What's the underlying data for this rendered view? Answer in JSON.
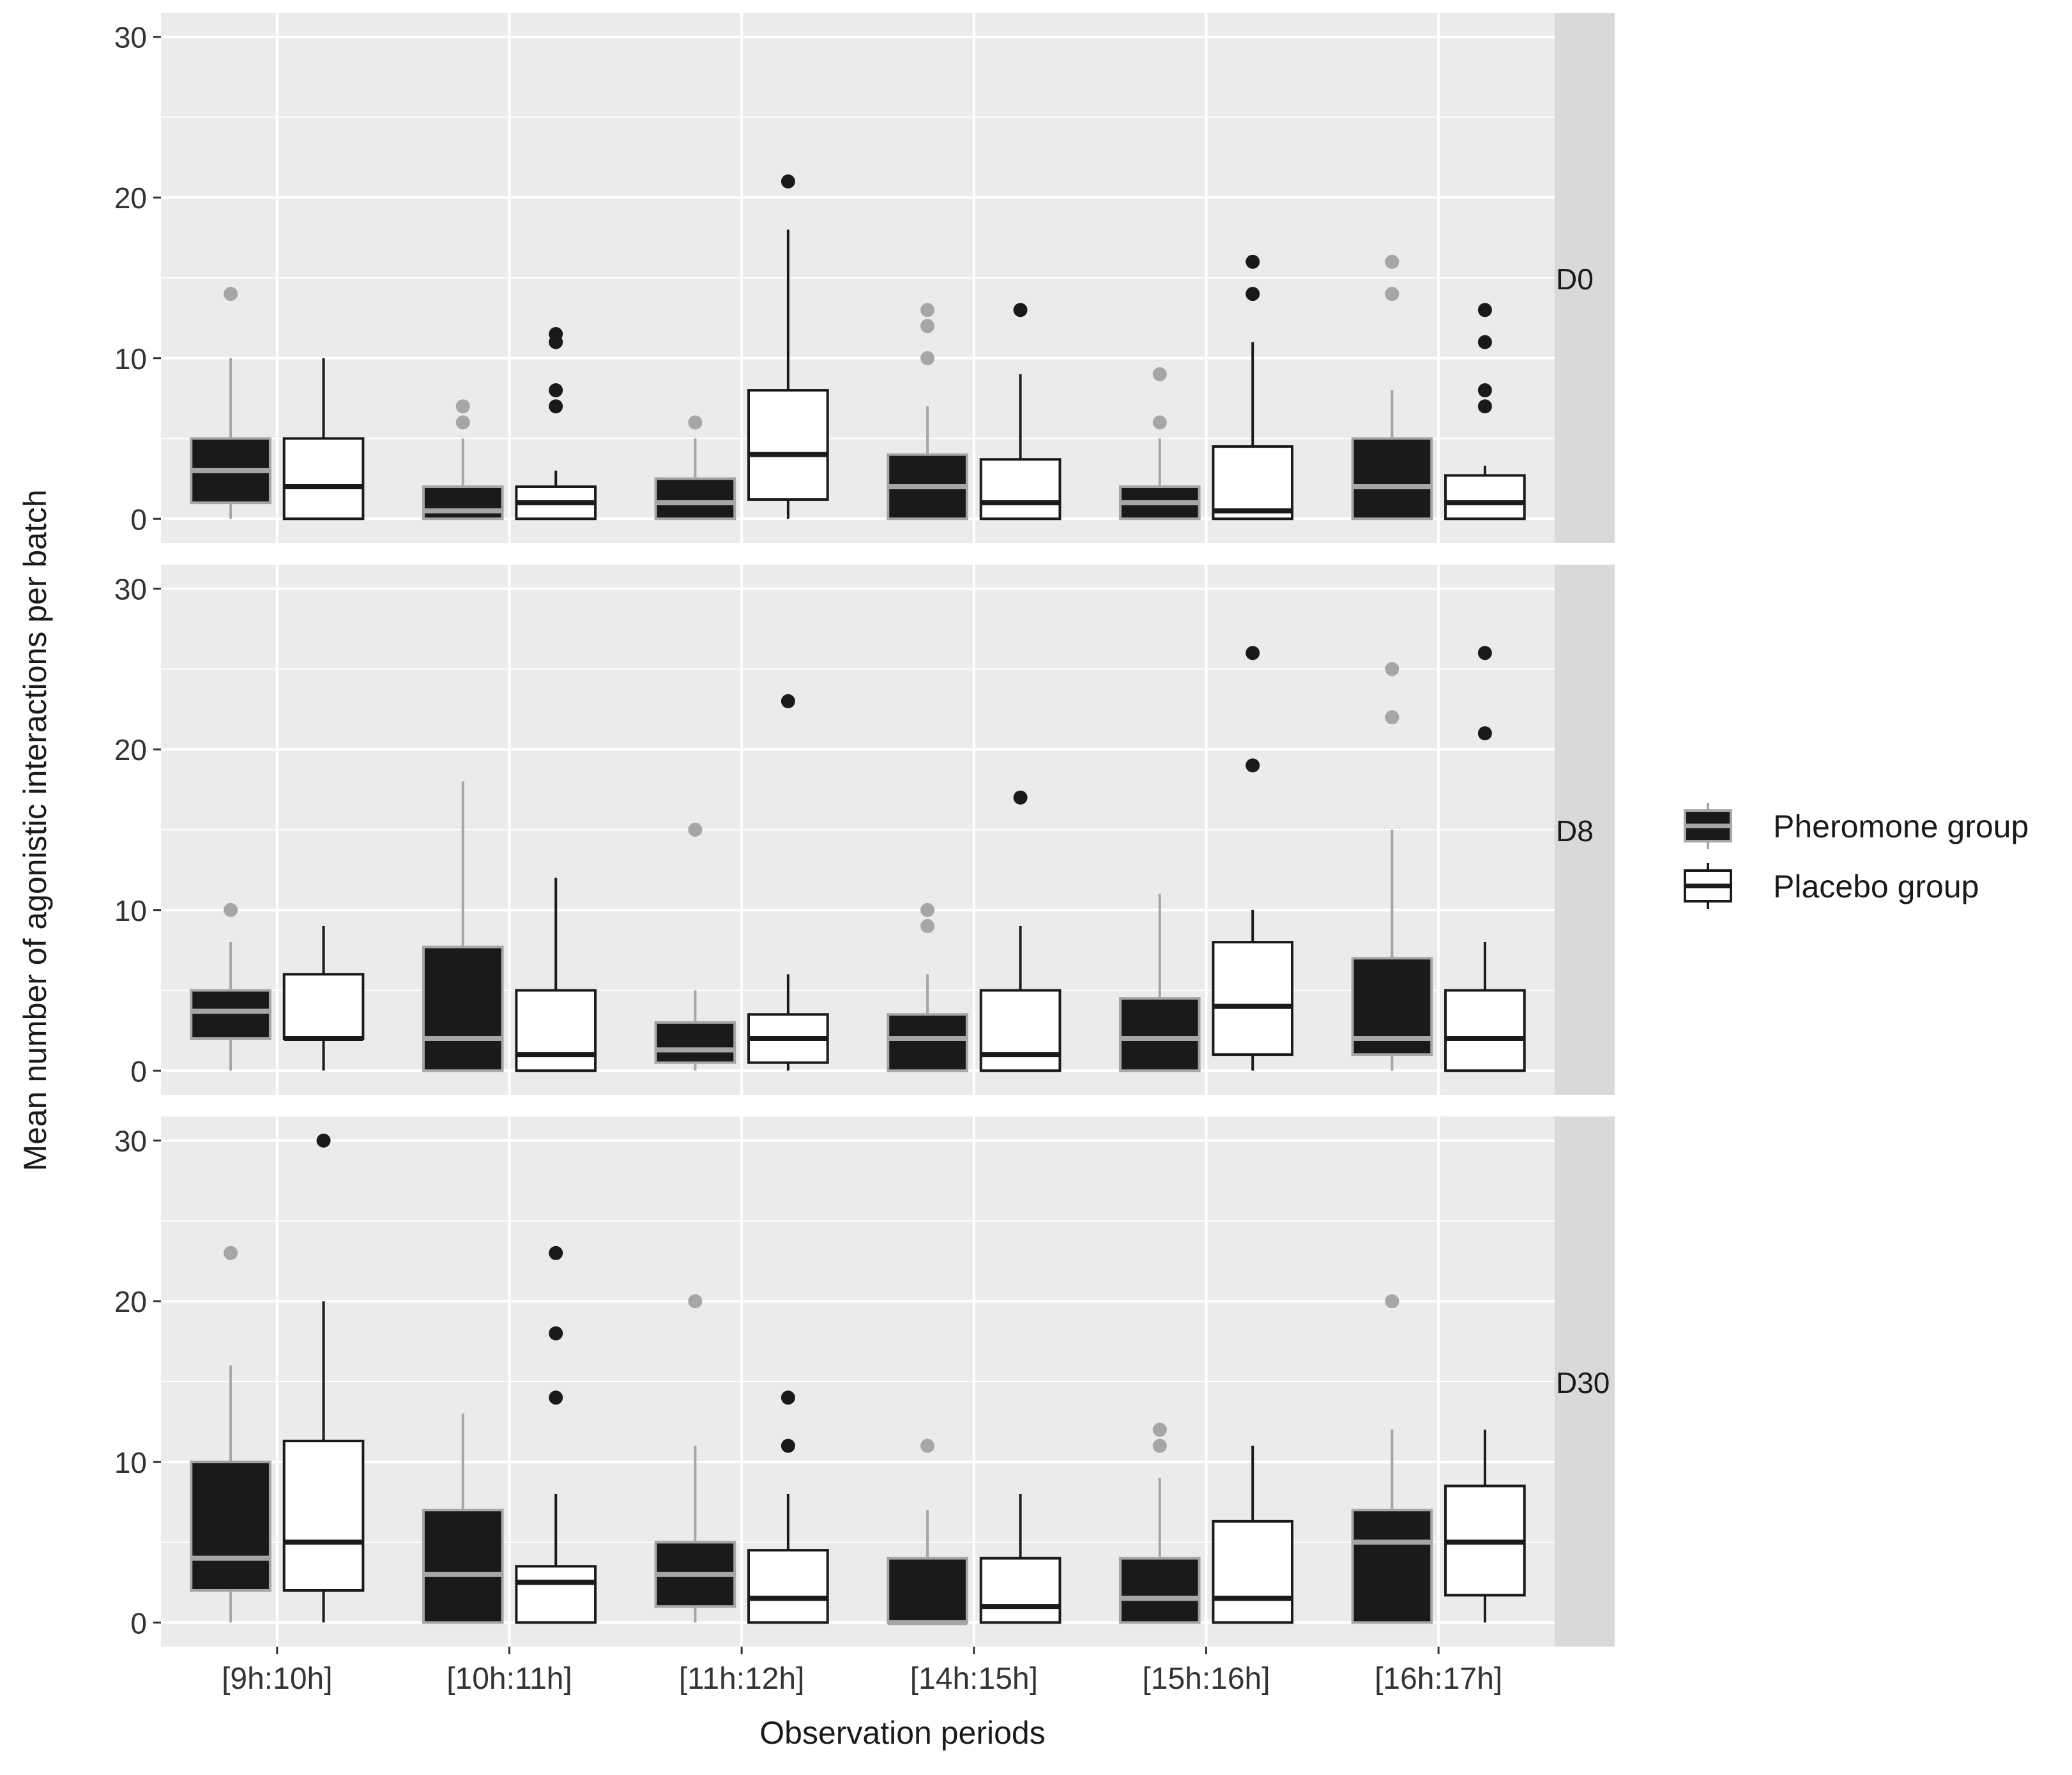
{
  "chart_data": {
    "type": "boxplot",
    "title": "",
    "xlabel": "Observation periods",
    "ylabel": "Mean number  of agonistic interactions per batch",
    "ylim": [
      -1.5,
      31.5
    ],
    "yticks": [
      0,
      10,
      20,
      30
    ],
    "categories": [
      "[9h:10h]",
      "[10h:11h]",
      "[11h:12h]",
      "[14h:15h]",
      "[15h:16h]",
      "[16h:17h]"
    ],
    "legend": {
      "position": "right",
      "entries": [
        {
          "group": "pheromone",
          "label": "Pheromone  group"
        },
        {
          "group": "placebo",
          "label": "Placebo group"
        }
      ]
    },
    "styles": {
      "panel_background": "#ebebeb",
      "strip_background": "#d9d9d9",
      "grid_color": "#ffffff",
      "pheromone_fill": "#1a1a1a",
      "pheromone_line": "#a6a6a6",
      "placebo_fill": "#ffffff",
      "placebo_line": "#1a1a1a"
    },
    "panels": [
      {
        "label": "D0",
        "pheromone": [
          {
            "q1": 1,
            "median": 3,
            "q3": 5,
            "lower": 0,
            "upper": 10,
            "outliers": [
              14
            ]
          },
          {
            "q1": 0,
            "median": 0.5,
            "q3": 2,
            "lower": 0,
            "upper": 5,
            "outliers": [
              6,
              7
            ]
          },
          {
            "q1": 0,
            "median": 1,
            "q3": 2.5,
            "lower": 0,
            "upper": 5,
            "outliers": [
              6
            ]
          },
          {
            "q1": 0,
            "median": 2,
            "q3": 4,
            "lower": 0,
            "upper": 7,
            "outliers": [
              10,
              12,
              13
            ]
          },
          {
            "q1": 0,
            "median": 1,
            "q3": 2,
            "lower": 0,
            "upper": 5,
            "outliers": [
              6,
              9
            ]
          },
          {
            "q1": 0,
            "median": 2,
            "q3": 5,
            "lower": 0,
            "upper": 8,
            "outliers": [
              14,
              16
            ]
          }
        ],
        "placebo": [
          {
            "q1": 0,
            "median": 2,
            "q3": 5,
            "lower": 0,
            "upper": 10,
            "outliers": []
          },
          {
            "q1": 0,
            "median": 1,
            "q3": 2,
            "lower": 0,
            "upper": 3,
            "outliers": [
              7,
              8,
              11,
              11.5
            ]
          },
          {
            "q1": 1.2,
            "median": 4,
            "q3": 8,
            "lower": 0,
            "upper": 18,
            "outliers": [
              21
            ]
          },
          {
            "q1": 0,
            "median": 1,
            "q3": 3.7,
            "lower": 0,
            "upper": 9,
            "outliers": [
              13
            ]
          },
          {
            "q1": 0,
            "median": 0.5,
            "q3": 4.5,
            "lower": 0,
            "upper": 11,
            "outliers": [
              14,
              16
            ]
          },
          {
            "q1": 0,
            "median": 1,
            "q3": 2.7,
            "lower": 0,
            "upper": 3.3,
            "outliers": [
              7,
              8,
              11,
              13
            ]
          }
        ]
      },
      {
        "label": "D8",
        "pheromone": [
          {
            "q1": 2,
            "median": 3.7,
            "q3": 5,
            "lower": 0,
            "upper": 8,
            "outliers": [
              10
            ]
          },
          {
            "q1": 0,
            "median": 2,
            "q3": 7.7,
            "lower": 0,
            "upper": 18,
            "outliers": []
          },
          {
            "q1": 0.5,
            "median": 1.3,
            "q3": 3,
            "lower": 0,
            "upper": 5,
            "outliers": [
              15
            ]
          },
          {
            "q1": 0,
            "median": 2,
            "q3": 3.5,
            "lower": 0,
            "upper": 6,
            "outliers": [
              9,
              10
            ]
          },
          {
            "q1": 0,
            "median": 2,
            "q3": 4.5,
            "lower": 0,
            "upper": 11,
            "outliers": []
          },
          {
            "q1": 1,
            "median": 2,
            "q3": 7,
            "lower": 0,
            "upper": 15,
            "outliers": [
              22,
              25
            ]
          }
        ],
        "placebo": [
          {
            "q1": 2,
            "median": 2,
            "q3": 6,
            "lower": 0,
            "upper": 9,
            "outliers": []
          },
          {
            "q1": 0,
            "median": 1,
            "q3": 5,
            "lower": 0,
            "upper": 12,
            "outliers": []
          },
          {
            "q1": 0.5,
            "median": 2,
            "q3": 3.5,
            "lower": 0,
            "upper": 6,
            "outliers": [
              23
            ]
          },
          {
            "q1": 0,
            "median": 1,
            "q3": 5,
            "lower": 0,
            "upper": 9,
            "outliers": [
              17
            ]
          },
          {
            "q1": 1,
            "median": 4,
            "q3": 8,
            "lower": 0,
            "upper": 10,
            "outliers": [
              19,
              26
            ]
          },
          {
            "q1": 0,
            "median": 2,
            "q3": 5,
            "lower": 0,
            "upper": 8,
            "outliers": [
              21,
              26
            ]
          }
        ]
      },
      {
        "label": "D30",
        "pheromone": [
          {
            "q1": 2,
            "median": 4,
            "q3": 10,
            "lower": 0,
            "upper": 16,
            "outliers": [
              23
            ]
          },
          {
            "q1": 0,
            "median": 3,
            "q3": 7,
            "lower": 0,
            "upper": 13,
            "outliers": []
          },
          {
            "q1": 1,
            "median": 3,
            "q3": 5,
            "lower": 0,
            "upper": 11,
            "outliers": [
              20
            ]
          },
          {
            "q1": 0,
            "median": 0,
            "q3": 4,
            "lower": 0,
            "upper": 7,
            "outliers": [
              11
            ]
          },
          {
            "q1": 0,
            "median": 1.5,
            "q3": 4,
            "lower": 0,
            "upper": 9,
            "outliers": [
              11,
              12
            ]
          },
          {
            "q1": 0,
            "median": 5,
            "q3": 7,
            "lower": 0,
            "upper": 12,
            "outliers": [
              20
            ]
          }
        ],
        "placebo": [
          {
            "q1": 2,
            "median": 5,
            "q3": 11.3,
            "lower": 0,
            "upper": 20,
            "outliers": [
              30
            ]
          },
          {
            "q1": 0,
            "median": 2.5,
            "q3": 3.5,
            "lower": 0,
            "upper": 8,
            "outliers": [
              14,
              18,
              23
            ]
          },
          {
            "q1": 0,
            "median": 1.5,
            "q3": 4.5,
            "lower": 0,
            "upper": 8,
            "outliers": [
              11,
              14
            ]
          },
          {
            "q1": 0,
            "median": 1,
            "q3": 4,
            "lower": 0,
            "upper": 8,
            "outliers": []
          },
          {
            "q1": 0,
            "median": 1.5,
            "q3": 6.3,
            "lower": 0,
            "upper": 11,
            "outliers": []
          },
          {
            "q1": 1.7,
            "median": 5,
            "q3": 8.5,
            "lower": 0,
            "upper": 12,
            "outliers": []
          }
        ]
      }
    ]
  }
}
